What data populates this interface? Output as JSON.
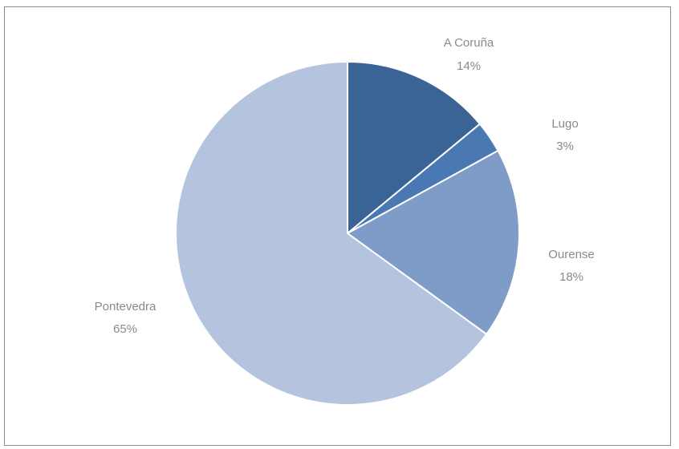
{
  "chart_data": {
    "type": "pie",
    "title": "",
    "slices": [
      {
        "label": "A Coruña",
        "value": 14,
        "percent_label": "14%",
        "color": "#3b6496"
      },
      {
        "label": "Lugo",
        "value": 3,
        "percent_label": "3%",
        "color": "#4a78b2"
      },
      {
        "label": "Ourense",
        "value": 18,
        "percent_label": "18%",
        "color": "#7f9cc8"
      },
      {
        "label": "Pontevedra",
        "value": 65,
        "percent_label": "65%",
        "color": "#b4c4de"
      }
    ],
    "slice_border_color": "#ffffff",
    "label_color": "#8a8a8a",
    "legend": "none"
  }
}
